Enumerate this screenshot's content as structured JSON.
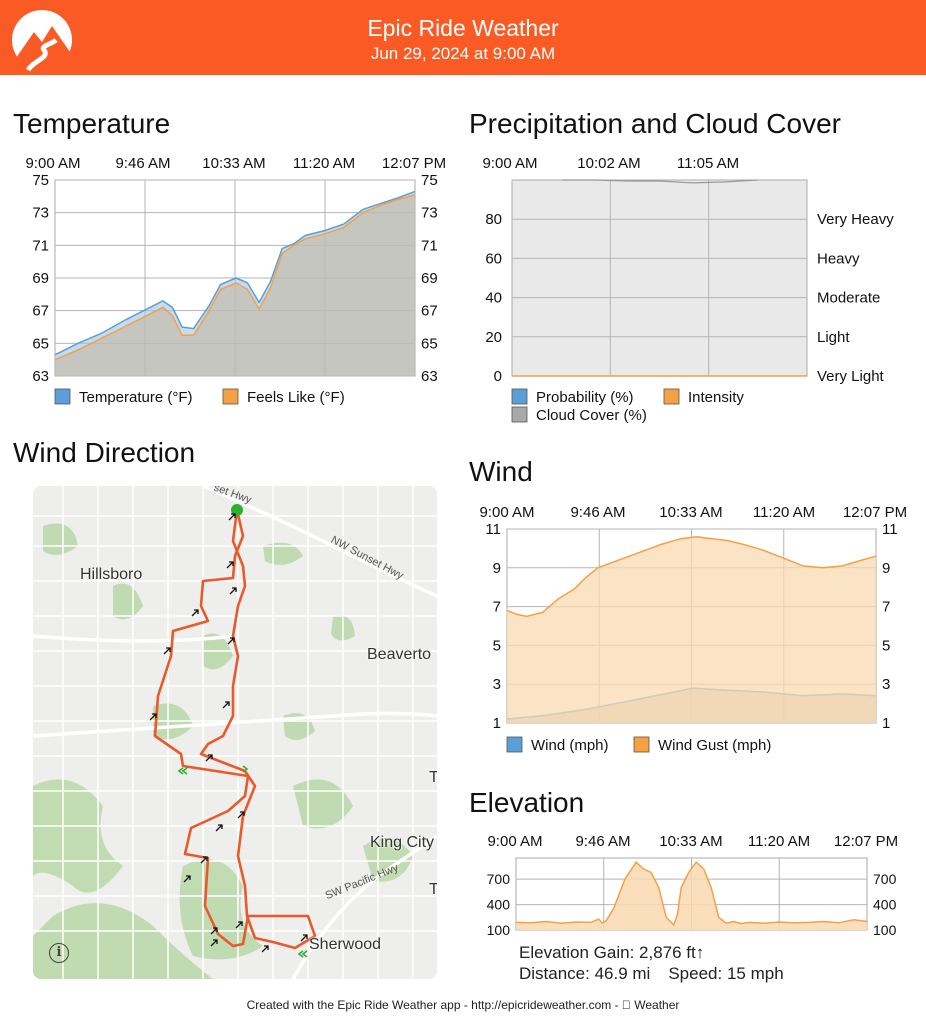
{
  "header": {
    "title": "Epic Ride Weather",
    "subtitle": "Jun 29, 2024 at 9:00 AM",
    "logo": "mountain-road-logo",
    "color": "#fa5a23"
  },
  "sections": {
    "temperature": "Temperature",
    "precipitation": "Precipitation and Cloud Cover",
    "wind_direction": "Wind Direction",
    "wind": "Wind",
    "elevation": "Elevation"
  },
  "map": {
    "places": [
      "Hillsboro",
      "Beaverto",
      "King City",
      "Sherwood"
    ],
    "roads": [
      "set Hwy",
      "NW Sunset Hwy",
      "SW Pacific Hwy"
    ],
    "edge_letters": [
      "T",
      "T"
    ],
    "info_icon": "info-icon",
    "route_color": "#e9592b",
    "start_color": "#2db12d"
  },
  "stats": {
    "elevation_gain": "Elevation Gain: 2,876 ft↑",
    "distance": "Distance: 46.9 mi",
    "speed": "Speed: 15 mph"
  },
  "footer": "Created with the Epic Ride Weather app - http://epicrideweather.com -  Weather",
  "chart_data": [
    {
      "id": "temperature",
      "type": "area",
      "title": "Temperature",
      "x_ticks": [
        "9:00 AM",
        "9:46 AM",
        "10:33 AM",
        "11:20 AM",
        "12:07 PM"
      ],
      "x_range": [
        0,
        187
      ],
      "ylim": [
        63,
        75
      ],
      "y_ticks": [
        63,
        65,
        67,
        69,
        71,
        73,
        75
      ],
      "grid": true,
      "legend": "bottom",
      "series": [
        {
          "name": "Temperature (°F)",
          "color": "#5a9fd8",
          "x": [
            0,
            12,
            24,
            36,
            46,
            56,
            61,
            66,
            72,
            80,
            86,
            94,
            100,
            106,
            112,
            118,
            124,
            130,
            140,
            150,
            160,
            170,
            178,
            187
          ],
          "values": [
            64.3,
            65.0,
            65.6,
            66.4,
            67.0,
            67.6,
            67.2,
            66.0,
            65.9,
            67.3,
            68.6,
            69.0,
            68.7,
            67.5,
            68.8,
            70.8,
            71.1,
            71.6,
            71.9,
            72.3,
            73.2,
            73.6,
            73.9,
            74.3
          ]
        },
        {
          "name": "Feels Like (°F)",
          "color": "#f5a043",
          "x": [
            0,
            12,
            24,
            36,
            46,
            56,
            61,
            66,
            72,
            80,
            86,
            94,
            100,
            106,
            112,
            118,
            124,
            130,
            140,
            150,
            160,
            170,
            178,
            187
          ],
          "values": [
            64.0,
            64.6,
            65.3,
            66.0,
            66.6,
            67.2,
            66.7,
            65.5,
            65.5,
            67.0,
            68.3,
            68.7,
            68.3,
            67.1,
            68.4,
            70.5,
            71.0,
            71.4,
            71.7,
            72.1,
            73.0,
            73.5,
            73.8,
            74.1
          ]
        }
      ]
    },
    {
      "id": "precipitation",
      "type": "area",
      "title": "Precipitation and Cloud Cover",
      "x_ticks": [
        "9:00 AM",
        "10:02 AM",
        "11:05 AM"
      ],
      "ylim": [
        0,
        100
      ],
      "y_ticks": [
        0,
        20,
        40,
        60,
        80
      ],
      "right_labels": [
        "Very Light",
        "Light",
        "Moderate",
        "Heavy",
        "Very Heavy"
      ],
      "grid": true,
      "legend": "bottom",
      "series": [
        {
          "name": "Probability (%)",
          "color": "#5a9fd8",
          "values": [
            0,
            0,
            0,
            0,
            0,
            0,
            0
          ]
        },
        {
          "name": "Intensity",
          "color": "#f5a043",
          "values": [
            0,
            0,
            0,
            0,
            0,
            0,
            0
          ]
        },
        {
          "name": "Cloud Cover (%)",
          "color": "#a9a9a9",
          "values": [
            100,
            100,
            99.5,
            99.5,
            98.5,
            99,
            100
          ]
        }
      ]
    },
    {
      "id": "wind",
      "type": "area",
      "title": "Wind",
      "x_ticks": [
        "9:00 AM",
        "9:46 AM",
        "10:33 AM",
        "11:20 AM",
        "12:07 PM"
      ],
      "x_range": [
        0,
        187
      ],
      "ylim": [
        1,
        11
      ],
      "y_ticks": [
        1,
        3,
        5,
        7,
        9,
        11
      ],
      "grid": true,
      "legend": "bottom",
      "series": [
        {
          "name": "Wind (mph)",
          "color": "#5a9fd8",
          "x": [
            0,
            20,
            40,
            60,
            80,
            94,
            110,
            130,
            150,
            170,
            187
          ],
          "values": [
            1.2,
            1.4,
            1.7,
            2.1,
            2.5,
            2.8,
            2.7,
            2.6,
            2.4,
            2.5,
            2.4
          ]
        },
        {
          "name": "Wind Gust (mph)",
          "color": "#f5a043",
          "x": [
            0,
            5,
            10,
            18,
            26,
            34,
            40,
            46,
            54,
            62,
            70,
            78,
            88,
            96,
            104,
            112,
            120,
            130,
            140,
            150,
            160,
            170,
            180,
            187
          ],
          "values": [
            6.8,
            6.6,
            6.5,
            6.7,
            7.4,
            7.9,
            8.5,
            9.0,
            9.3,
            9.6,
            9.9,
            10.2,
            10.5,
            10.6,
            10.5,
            10.4,
            10.2,
            9.9,
            9.5,
            9.1,
            9.0,
            9.1,
            9.4,
            9.6
          ]
        }
      ]
    },
    {
      "id": "elevation",
      "type": "area",
      "title": "Elevation",
      "x_ticks": [
        "9:00 AM",
        "9:46 AM",
        "10:33 AM",
        "11:20 AM",
        "12:07 PM"
      ],
      "x_range": [
        0,
        187
      ],
      "ylim": [
        100,
        950
      ],
      "y_ticks": [
        100,
        400,
        700
      ],
      "grid": true,
      "series": [
        {
          "name": "Elevation (ft)",
          "color": "#f5a043",
          "x": [
            0,
            8,
            16,
            24,
            32,
            40,
            44,
            46,
            48,
            52,
            58,
            64,
            68,
            72,
            76,
            80,
            84,
            86,
            88,
            92,
            96,
            100,
            104,
            108,
            112,
            116,
            120,
            124,
            132,
            140,
            148,
            156,
            164,
            172,
            180,
            187
          ],
          "values": [
            190,
            185,
            200,
            180,
            195,
            190,
            230,
            180,
            210,
            350,
            700,
            900,
            820,
            780,
            600,
            250,
            160,
            280,
            600,
            780,
            900,
            820,
            600,
            250,
            180,
            200,
            175,
            190,
            180,
            195,
            185,
            190,
            200,
            185,
            220,
            200
          ]
        }
      ]
    }
  ]
}
